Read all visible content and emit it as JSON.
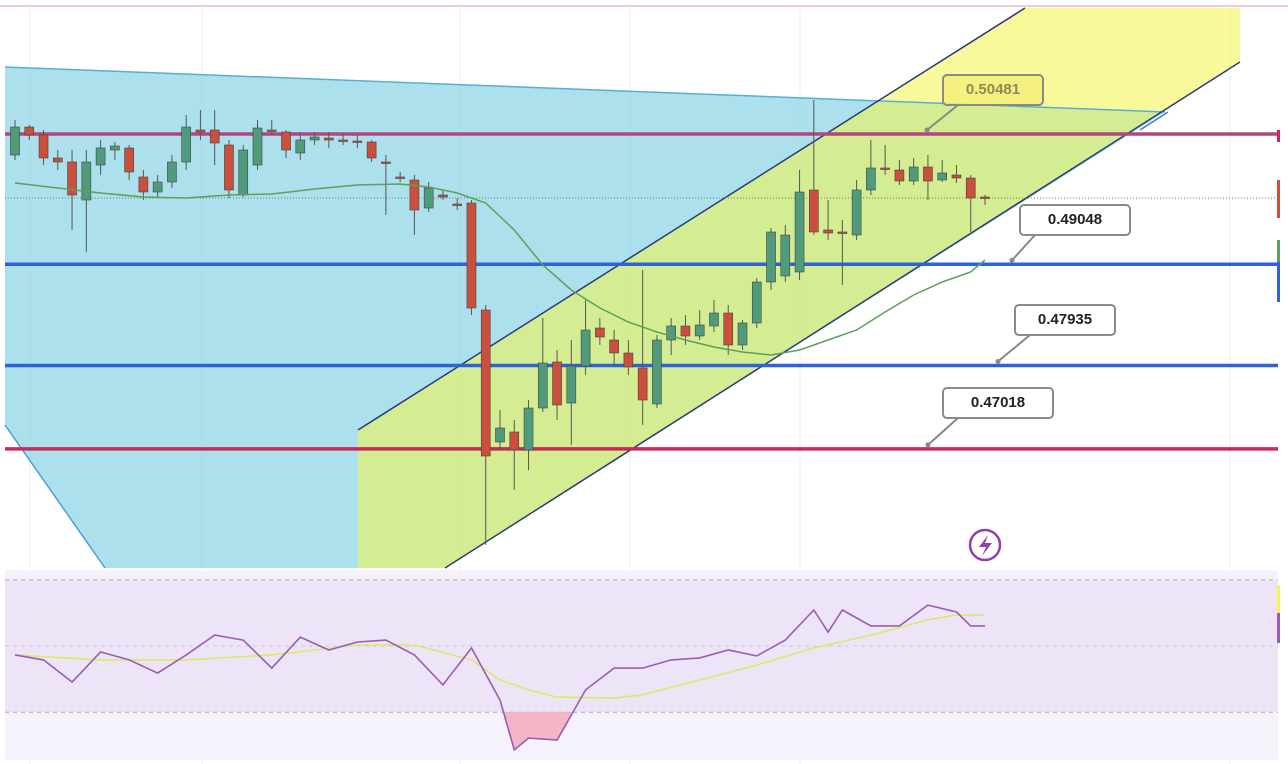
{
  "chart_data": {
    "type": "candlestick",
    "ylim": [
      0.45707,
      0.519
    ],
    "up_color": "#4f9b7b",
    "down_color": "#cb4f3d",
    "candles": [
      [
        0.5025,
        0.50635,
        0.50195,
        0.50558
      ],
      [
        0.50558,
        0.5058,
        0.50415,
        0.5047
      ],
      [
        0.5047,
        0.50525,
        0.5014,
        0.50217
      ],
      [
        0.50217,
        0.50305,
        0.50085,
        0.50173
      ],
      [
        0.50173,
        0.50305,
        0.49425,
        0.4981
      ],
      [
        0.49755,
        0.50305,
        0.49183,
        0.50173
      ],
      [
        0.5014,
        0.50415,
        0.5003,
        0.50327
      ],
      [
        0.50305,
        0.50393,
        0.50195,
        0.50349
      ],
      [
        0.50327,
        0.5036,
        0.49975,
        0.50063
      ],
      [
        0.50008,
        0.50085,
        0.49755,
        0.49843
      ],
      [
        0.49843,
        0.5003,
        0.49777,
        0.49953
      ],
      [
        0.49953,
        0.5025,
        0.49887,
        0.50173
      ],
      [
        0.50173,
        0.5069,
        0.50085,
        0.50558
      ],
      [
        0.50525,
        0.50745,
        0.50415,
        0.50503
      ],
      [
        0.50525,
        0.50745,
        0.5014,
        0.50382
      ],
      [
        0.5036,
        0.50415,
        0.49777,
        0.49865
      ],
      [
        0.4981,
        0.5036,
        0.49788,
        0.50305
      ],
      [
        0.5014,
        0.50635,
        0.50085,
        0.50547
      ],
      [
        0.50525,
        0.50635,
        0.5047,
        0.50514
      ],
      [
        0.50503,
        0.50525,
        0.50217,
        0.50305
      ],
      [
        0.50272,
        0.50503,
        0.50195,
        0.50415
      ],
      [
        0.50415,
        0.50503,
        0.5036,
        0.50448
      ],
      [
        0.50437,
        0.50503,
        0.50327,
        0.50415
      ],
      [
        0.50415,
        0.5047,
        0.5036,
        0.50404
      ],
      [
        0.50404,
        0.5047,
        0.50327,
        0.50393
      ],
      [
        0.50393,
        0.50415,
        0.50173,
        0.50217
      ],
      [
        0.50173,
        0.5025,
        0.4959,
        0.50162
      ],
      [
        0.50008,
        0.50063,
        0.49953,
        0.49997
      ],
      [
        0.49975,
        0.5003,
        0.4937,
        0.49645
      ],
      [
        0.49667,
        0.49953,
        0.49623,
        0.49887
      ],
      [
        0.4981,
        0.49865,
        0.49755,
        0.49788
      ],
      [
        0.49711,
        0.49777,
        0.49645,
        0.497
      ],
      [
        0.49722,
        0.49755,
        0.4849,
        0.48567
      ],
      [
        0.48545,
        0.486,
        0.4596,
        0.46939
      ],
      [
        0.47093,
        0.47445,
        0.47005,
        0.47247
      ],
      [
        0.47203,
        0.47335,
        0.46565,
        0.47005
      ],
      [
        0.47005,
        0.47555,
        0.46785,
        0.47467
      ],
      [
        0.47467,
        0.48457,
        0.47423,
        0.47962
      ],
      [
        0.47973,
        0.48105,
        0.47335,
        0.475
      ],
      [
        0.47522,
        0.48215,
        0.4706,
        0.47929
      ],
      [
        0.47929,
        0.48655,
        0.4783,
        0.48325
      ],
      [
        0.48347,
        0.48457,
        0.4816,
        0.48248
      ],
      [
        0.48215,
        0.48325,
        0.4794,
        0.48072
      ],
      [
        0.48072,
        0.48215,
        0.4783,
        0.47918
      ],
      [
        0.47907,
        0.48985,
        0.4728,
        0.47555
      ],
      [
        0.47511,
        0.4827,
        0.47467,
        0.48215
      ],
      [
        0.48215,
        0.48457,
        0.4805,
        0.48369
      ],
      [
        0.48369,
        0.4849,
        0.4816,
        0.48259
      ],
      [
        0.48259,
        0.48545,
        0.48215,
        0.4838
      ],
      [
        0.48369,
        0.48655,
        0.48303,
        0.48512
      ],
      [
        0.48512,
        0.486,
        0.4805,
        0.4816
      ],
      [
        0.4816,
        0.48435,
        0.48105,
        0.48402
      ],
      [
        0.48402,
        0.48897,
        0.48347,
        0.48853
      ],
      [
        0.48853,
        0.49447,
        0.48765,
        0.49403
      ],
      [
        0.48919,
        0.4948,
        0.48853,
        0.4937
      ],
      [
        0.48963,
        0.50085,
        0.48875,
        0.49843
      ],
      [
        0.49865,
        0.50855,
        0.4937,
        0.49403
      ],
      [
        0.49425,
        0.49755,
        0.49315,
        0.49392
      ],
      [
        0.49403,
        0.49535,
        0.4882,
        0.49392
      ],
      [
        0.4937,
        0.49975,
        0.49315,
        0.49865
      ],
      [
        0.49865,
        0.50415,
        0.4981,
        0.50107
      ],
      [
        0.50107,
        0.5036,
        0.5003,
        0.50096
      ],
      [
        0.50085,
        0.50195,
        0.4992,
        0.49964
      ],
      [
        0.49964,
        0.50217,
        0.4992,
        0.50118
      ],
      [
        0.50118,
        0.5025,
        0.49755,
        0.49964
      ],
      [
        0.49975,
        0.50195,
        0.49953,
        0.50052
      ],
      [
        0.5003,
        0.5014,
        0.49942,
        0.49997
      ],
      [
        0.49997,
        0.5003,
        0.49403,
        0.49777
      ],
      [
        0.49788,
        0.4981,
        0.497,
        0.49777
      ]
    ],
    "ma": {
      "color": "#5e9f5a",
      "x": [
        0,
        3,
        6,
        9,
        12,
        15,
        18,
        21,
        24,
        27,
        29,
        31,
        33,
        35,
        37,
        39,
        41,
        43,
        45,
        47,
        49,
        51,
        53,
        55,
        57,
        59,
        61,
        63,
        65,
        67,
        68
      ],
      "values": [
        0.49942,
        0.49887,
        0.49832,
        0.49788,
        0.49777,
        0.4981,
        0.49821,
        0.49876,
        0.4992,
        0.49931,
        0.49898,
        0.49832,
        0.49722,
        0.49425,
        0.4904,
        0.48765,
        0.48567,
        0.48413,
        0.48303,
        0.48215,
        0.48138,
        0.48083,
        0.4805,
        0.48105,
        0.48215,
        0.48325,
        0.48523,
        0.4871,
        0.48853,
        0.48963,
        0.49095
      ]
    },
    "levels": [
      {
        "value": 0.50481,
        "color": "#b0477e",
        "label_fill": "#f3f07a"
      },
      {
        "value": 0.49048,
        "color": "#2f62d8",
        "label_fill": "#ffffff"
      },
      {
        "value": 0.47935,
        "color": "#2f62d8",
        "label_fill": "#ffffff"
      },
      {
        "value": 0.47018,
        "color": "#c8285a",
        "label_fill": "#ffffff"
      }
    ],
    "rsi": {
      "ylim": [
        15.45,
        73.03
      ],
      "guides": [
        70,
        50,
        30
      ],
      "series": [
        {
          "color": "#9b5cb8",
          "x": [
            0,
            2,
            4,
            6,
            8,
            10,
            12,
            14,
            16,
            18,
            20,
            22,
            24,
            26,
            28,
            30,
            32,
            34,
            35,
            36,
            38,
            40,
            42,
            44,
            46,
            48,
            50,
            52,
            54,
            56,
            57,
            58,
            60,
            62,
            64,
            66,
            67,
            68
          ],
          "values": [
            47.3,
            45.8,
            39.1,
            48.2,
            45.8,
            41.8,
            47.3,
            53.3,
            51.8,
            43.3,
            52.7,
            48.8,
            51.2,
            51.8,
            47.3,
            38.2,
            49.4,
            33.6,
            18.5,
            22.1,
            21.5,
            36.7,
            43.3,
            43.3,
            45.8,
            46.4,
            48.8,
            47.0,
            51.8,
            60.9,
            54.2,
            60.9,
            56.1,
            56.1,
            62.4,
            60.3,
            56.1,
            56.1
          ]
        },
        {
          "color": "#dbe86a",
          "x": [
            0,
            6,
            12,
            18,
            24,
            28,
            32,
            34,
            36,
            38,
            42,
            44,
            48,
            52,
            56,
            60,
            64,
            66,
            68
          ],
          "values": [
            47.3,
            45.8,
            45.8,
            47.3,
            50.3,
            50.3,
            45.8,
            39.7,
            36.7,
            34.5,
            34.2,
            35.2,
            39.7,
            44.2,
            49.4,
            53.3,
            57.9,
            59.4,
            59.4
          ]
        }
      ]
    }
  }
}
